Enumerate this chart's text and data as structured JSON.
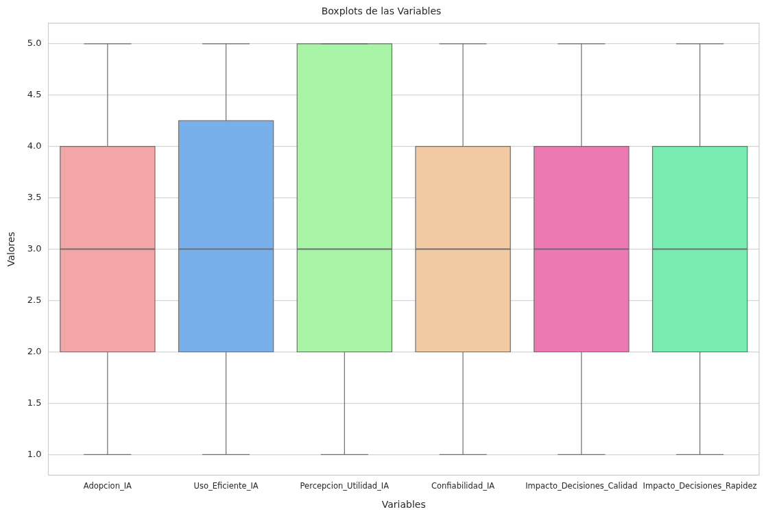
{
  "chart_data": {
    "type": "box",
    "title": "Boxplots de las Variables",
    "xlabel": "Variables",
    "ylabel": "Valores",
    "categories": [
      "Adopcion_IA",
      "Uso_Eficiente_IA",
      "Percepcion_Utilidad_IA",
      "Confiabilidad_IA",
      "Impacto_Decisiones_Calidad",
      "Impacto_Decisiones_Rapidez"
    ],
    "colors": [
      "#f2a6a6",
      "#78b0ec",
      "#a8f4a6",
      "#f2cba4",
      "#ec79b2",
      "#78ecb0"
    ],
    "boxes": [
      {
        "low": 1,
        "q1": 2,
        "median": 3,
        "q3": 4,
        "high": 5
      },
      {
        "low": 1,
        "q1": 2,
        "median": 3,
        "q3": 4.25,
        "high": 5
      },
      {
        "low": 1,
        "q1": 2,
        "median": 3,
        "q3": 5,
        "high": 5
      },
      {
        "low": 1,
        "q1": 2,
        "median": 3,
        "q3": 4,
        "high": 5
      },
      {
        "low": 1,
        "q1": 2,
        "median": 3,
        "q3": 4,
        "high": 5
      },
      {
        "low": 1,
        "q1": 2,
        "median": 3,
        "q3": 4,
        "high": 5
      }
    ],
    "ylim": [
      0.8,
      5.2
    ],
    "yticks": [
      {
        "value": 1,
        "label": "1.0"
      },
      {
        "value": 1.5,
        "label": "1.5"
      },
      {
        "value": 2,
        "label": "2.0"
      },
      {
        "value": 2.5,
        "label": "2.5"
      },
      {
        "value": 3,
        "label": "3.0"
      },
      {
        "value": 3.5,
        "label": "3.5"
      },
      {
        "value": 4,
        "label": "4.0"
      },
      {
        "value": 4.5,
        "label": "4.5"
      },
      {
        "value": 5,
        "label": "5.0"
      }
    ],
    "grid": "y",
    "legend": false
  }
}
